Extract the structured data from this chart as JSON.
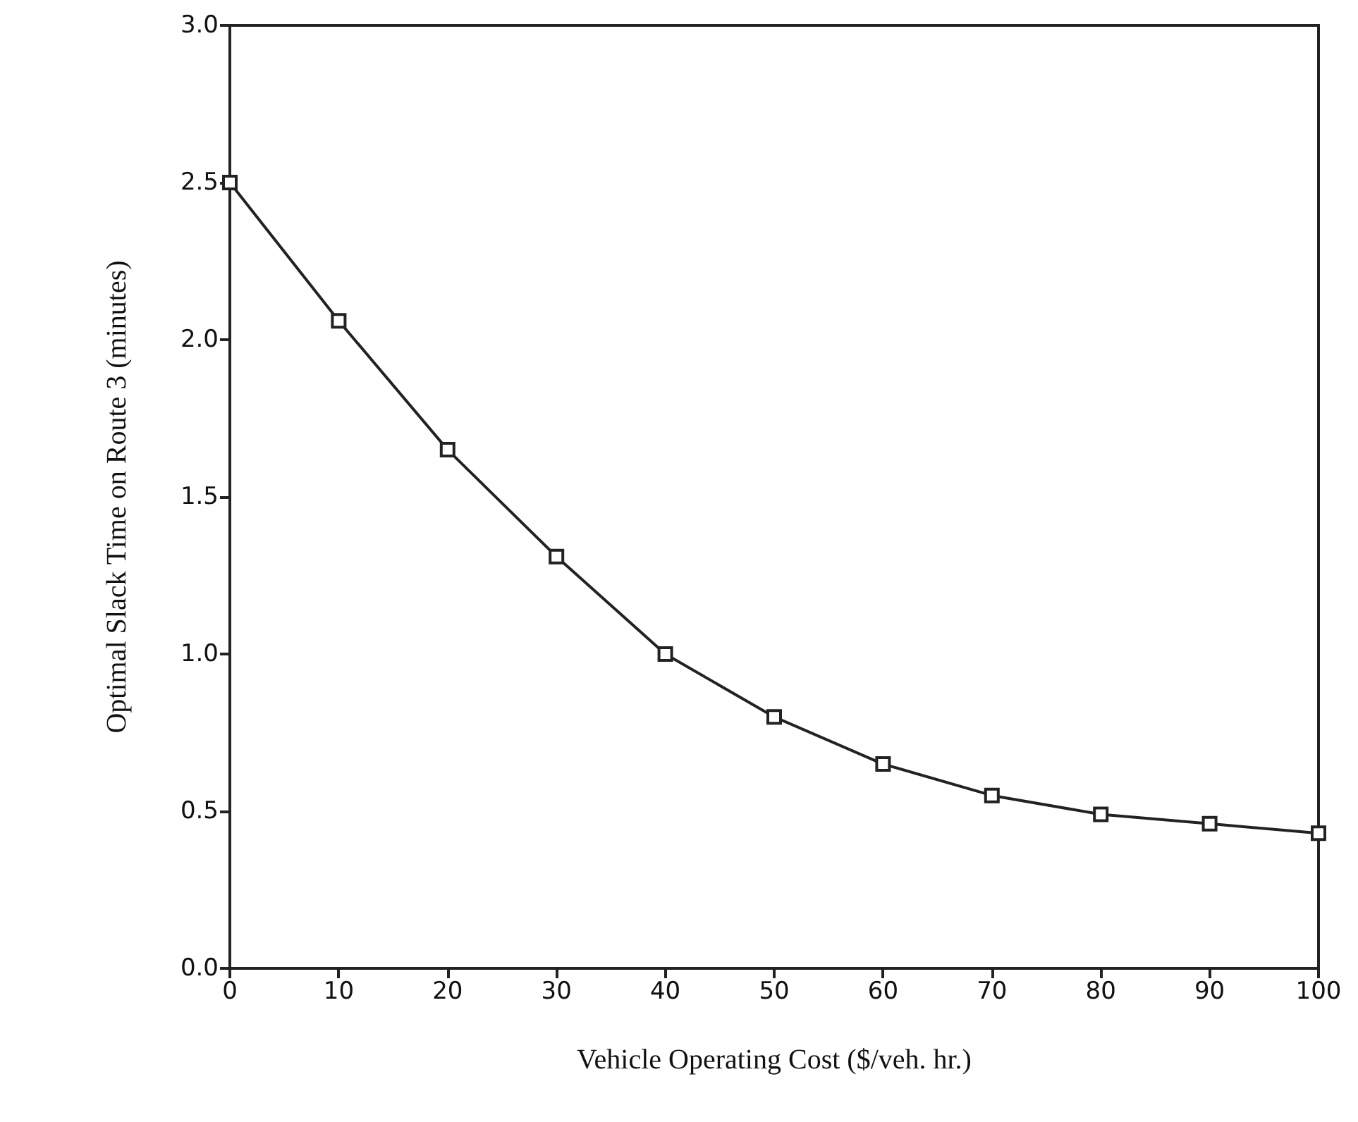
{
  "chart_data": {
    "type": "line",
    "xlabel": "Vehicle Operating Cost ($/veh. hr.)",
    "ylabel": "Optimal Slack Time on Route 3 (minutes)",
    "x": [
      0,
      10,
      20,
      30,
      40,
      50,
      60,
      70,
      80,
      90,
      100
    ],
    "series": [
      {
        "color": "#222222",
        "values": [
          2.5,
          2.06,
          1.65,
          1.31,
          1.0,
          0.8,
          0.65,
          0.55,
          0.49,
          0.46,
          0.43
        ]
      }
    ],
    "xlim": [
      0,
      100
    ],
    "xticks": [
      0,
      10,
      20,
      30,
      40,
      50,
      60,
      70,
      80,
      90,
      100
    ],
    "ylim": [
      0,
      3
    ],
    "yticks": [
      {
        "value": 0,
        "label": "0.0"
      },
      {
        "value": 0.5,
        "label": "0.5"
      },
      {
        "value": 1,
        "label": "1.0"
      },
      {
        "value": 1.5,
        "label": "1.5"
      },
      {
        "value": 2,
        "label": "2.0"
      },
      {
        "value": 2.5,
        "label": "2.5"
      },
      {
        "value": 3,
        "label": "3.0"
      }
    ],
    "grid": false,
    "marker": "square",
    "line_style": "solid"
  }
}
